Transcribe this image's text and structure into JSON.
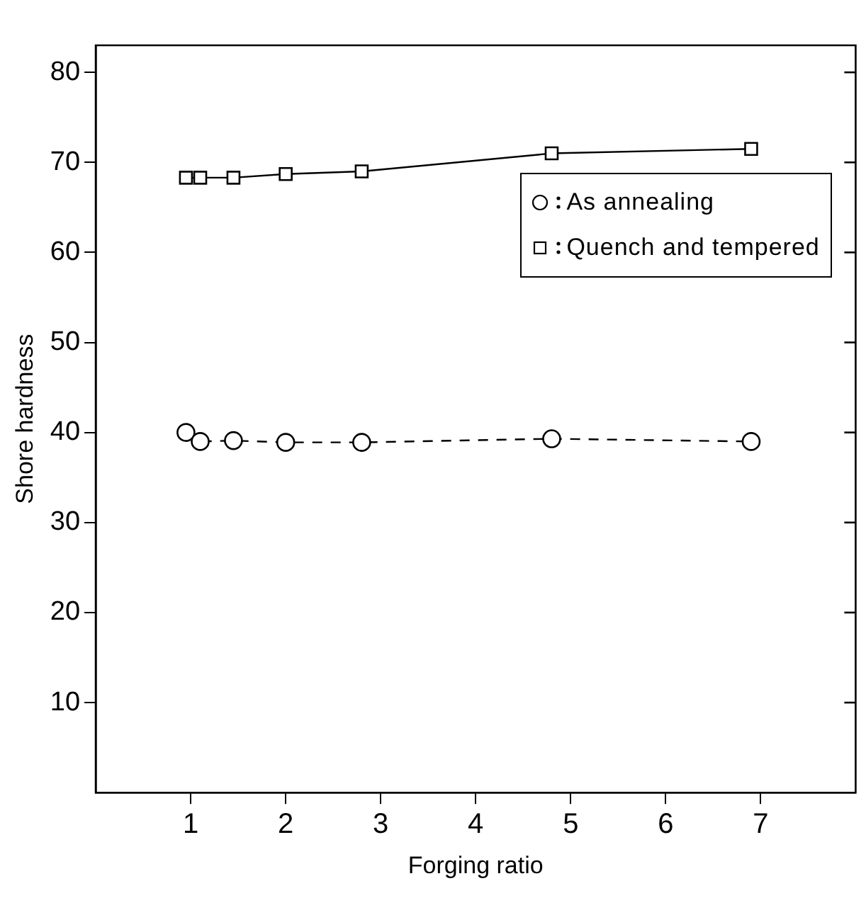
{
  "chart_data": {
    "type": "line",
    "xlabel": "Forging ratio",
    "ylabel": "Shore hardness",
    "xlim": [
      0,
      8
    ],
    "xticks": [
      1,
      2,
      3,
      4,
      5,
      6,
      7
    ],
    "ylim": [
      0,
      83
    ],
    "yticks": [
      10,
      20,
      30,
      40,
      50,
      60,
      70,
      80
    ],
    "grid": false,
    "legend": "right",
    "series": [
      {
        "name": "As annealing",
        "color": "#000000",
        "marker": "circle",
        "line_style": "dashed",
        "x": [
          0.95,
          1.1,
          1.45,
          2.0,
          2.8,
          4.8,
          6.9
        ],
        "values": [
          40,
          39,
          39.1,
          38.9,
          38.9,
          39.3,
          39
        ]
      },
      {
        "name": "Quench and tempered",
        "color": "#000000",
        "marker": "square",
        "line_style": "solid",
        "x": [
          0.95,
          1.1,
          1.45,
          2.0,
          2.8,
          4.8,
          6.9
        ],
        "values": [
          68.3,
          68.3,
          68.3,
          68.7,
          69,
          71,
          71.5
        ]
      }
    ]
  }
}
